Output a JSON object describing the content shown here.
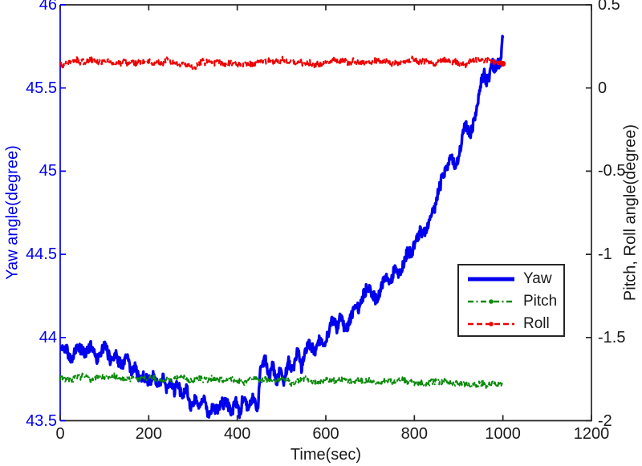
{
  "figure": {
    "background": "#ffffff",
    "axes_color": "#262626",
    "text_color": "#1a1a1a"
  },
  "chart_data": {
    "type": "line",
    "title": "",
    "xlabel": "Time(sec)",
    "ylabel_left": "Yaw angle(degree)",
    "ylabel_right": "Pitch, Roll angle(degree)",
    "xlim": [
      0,
      1200
    ],
    "xticks": [
      0,
      200,
      400,
      600,
      800,
      1000,
      1200
    ],
    "ylim_left": [
      43.5,
      46
    ],
    "yticks_left": [
      43.5,
      44,
      44.5,
      45,
      45.5,
      46
    ],
    "ylim_right": [
      -2,
      0.5
    ],
    "yticks_right": [
      -2,
      -1.5,
      -1,
      -0.5,
      0,
      0.5
    ],
    "left_axis_color": "#0000ee",
    "right_axis_color": "#262626",
    "grid": false,
    "legend": {
      "position": "middle-right",
      "border_color": "#262626",
      "entries": [
        "Yaw",
        "Pitch",
        "Roll"
      ]
    },
    "series": [
      {
        "name": "Yaw",
        "axis": "left",
        "color": "#0000ee",
        "style": "solid",
        "line_width": 3.4,
        "marker": "none",
        "noise": 0.03,
        "seed": 42,
        "anchors": [
          [
            0,
            43.92
          ],
          [
            15,
            43.95
          ],
          [
            25,
            43.88
          ],
          [
            40,
            43.94
          ],
          [
            55,
            43.9
          ],
          [
            70,
            43.96
          ],
          [
            85,
            43.88
          ],
          [
            100,
            43.93
          ],
          [
            115,
            43.86
          ],
          [
            125,
            43.92
          ],
          [
            140,
            43.85
          ],
          [
            150,
            43.88
          ],
          [
            160,
            43.78
          ],
          [
            170,
            43.82
          ],
          [
            180,
            43.76
          ],
          [
            190,
            43.79
          ],
          [
            200,
            43.73
          ],
          [
            210,
            43.77
          ],
          [
            220,
            43.7
          ],
          [
            230,
            43.76
          ],
          [
            240,
            43.7
          ],
          [
            250,
            43.74
          ],
          [
            258,
            43.66
          ],
          [
            266,
            43.72
          ],
          [
            275,
            43.63
          ],
          [
            285,
            43.67
          ],
          [
            295,
            43.58
          ],
          [
            305,
            43.62
          ],
          [
            315,
            43.55
          ],
          [
            325,
            43.6
          ],
          [
            335,
            43.55
          ],
          [
            345,
            43.58
          ],
          [
            355,
            43.54
          ],
          [
            365,
            43.6
          ],
          [
            375,
            43.64
          ],
          [
            385,
            43.58
          ],
          [
            395,
            43.62
          ],
          [
            405,
            43.57
          ],
          [
            415,
            43.63
          ],
          [
            425,
            43.59
          ],
          [
            435,
            43.63
          ],
          [
            443,
            43.59
          ],
          [
            447,
            43.62
          ],
          [
            452,
            43.8
          ],
          [
            458,
            43.84
          ],
          [
            465,
            43.86
          ],
          [
            472,
            43.76
          ],
          [
            480,
            43.82
          ],
          [
            488,
            43.7
          ],
          [
            497,
            43.8
          ],
          [
            505,
            43.73
          ],
          [
            515,
            43.85
          ],
          [
            525,
            43.79
          ],
          [
            535,
            43.88
          ],
          [
            545,
            43.83
          ],
          [
            555,
            43.92
          ],
          [
            565,
            43.97
          ],
          [
            575,
            43.92
          ],
          [
            585,
            44.0
          ],
          [
            595,
            43.96
          ],
          [
            605,
            44.04
          ],
          [
            615,
            44.1
          ],
          [
            625,
            44.05
          ],
          [
            635,
            44.12
          ],
          [
            645,
            44.06
          ],
          [
            655,
            44.14
          ],
          [
            665,
            44.2
          ],
          [
            675,
            44.16
          ],
          [
            685,
            44.24
          ],
          [
            695,
            44.3
          ],
          [
            705,
            44.26
          ],
          [
            715,
            44.22
          ],
          [
            725,
            44.3
          ],
          [
            735,
            44.38
          ],
          [
            745,
            44.33
          ],
          [
            755,
            44.42
          ],
          [
            765,
            44.38
          ],
          [
            775,
            44.46
          ],
          [
            785,
            44.54
          ],
          [
            795,
            44.5
          ],
          [
            805,
            44.6
          ],
          [
            815,
            44.66
          ],
          [
            825,
            44.62
          ],
          [
            835,
            44.7
          ],
          [
            845,
            44.76
          ],
          [
            855,
            44.88
          ],
          [
            865,
            44.96
          ],
          [
            875,
            45.04
          ],
          [
            885,
            45.1
          ],
          [
            895,
            45.05
          ],
          [
            905,
            45.18
          ],
          [
            915,
            45.28
          ],
          [
            925,
            45.22
          ],
          [
            935,
            45.32
          ],
          [
            945,
            45.45
          ],
          [
            952,
            45.55
          ],
          [
            958,
            45.6
          ],
          [
            964,
            45.54
          ],
          [
            970,
            45.6
          ],
          [
            976,
            45.66
          ],
          [
            982,
            45.6
          ],
          [
            988,
            45.64
          ],
          [
            994,
            45.6
          ],
          [
            1000,
            45.8
          ]
        ]
      },
      {
        "name": "Pitch",
        "axis": "right",
        "color": "#0a8a0a",
        "style": "dashdot",
        "line_width": 2,
        "marker": "none",
        "noise": 0.016,
        "seed": 7,
        "anchors": [
          [
            0,
            -1.74
          ],
          [
            100,
            -1.745
          ],
          [
            200,
            -1.75
          ],
          [
            300,
            -1.75
          ],
          [
            400,
            -1.755
          ],
          [
            500,
            -1.76
          ],
          [
            600,
            -1.755
          ],
          [
            700,
            -1.76
          ],
          [
            800,
            -1.765
          ],
          [
            900,
            -1.77
          ],
          [
            1000,
            -1.78
          ]
        ]
      },
      {
        "name": "Roll",
        "axis": "right",
        "color": "#ee0000",
        "style": "dashed",
        "line_width": 2.2,
        "marker": "end-dot",
        "noise": 0.016,
        "seed": 99,
        "anchors": [
          [
            0,
            0.15
          ],
          [
            80,
            0.16
          ],
          [
            160,
            0.15
          ],
          [
            240,
            0.16
          ],
          [
            300,
            0.13
          ],
          [
            320,
            0.15
          ],
          [
            400,
            0.15
          ],
          [
            480,
            0.16
          ],
          [
            560,
            0.15
          ],
          [
            640,
            0.16
          ],
          [
            720,
            0.15
          ],
          [
            800,
            0.16
          ],
          [
            880,
            0.15
          ],
          [
            940,
            0.16
          ],
          [
            1000,
            0.15
          ]
        ]
      }
    ]
  }
}
